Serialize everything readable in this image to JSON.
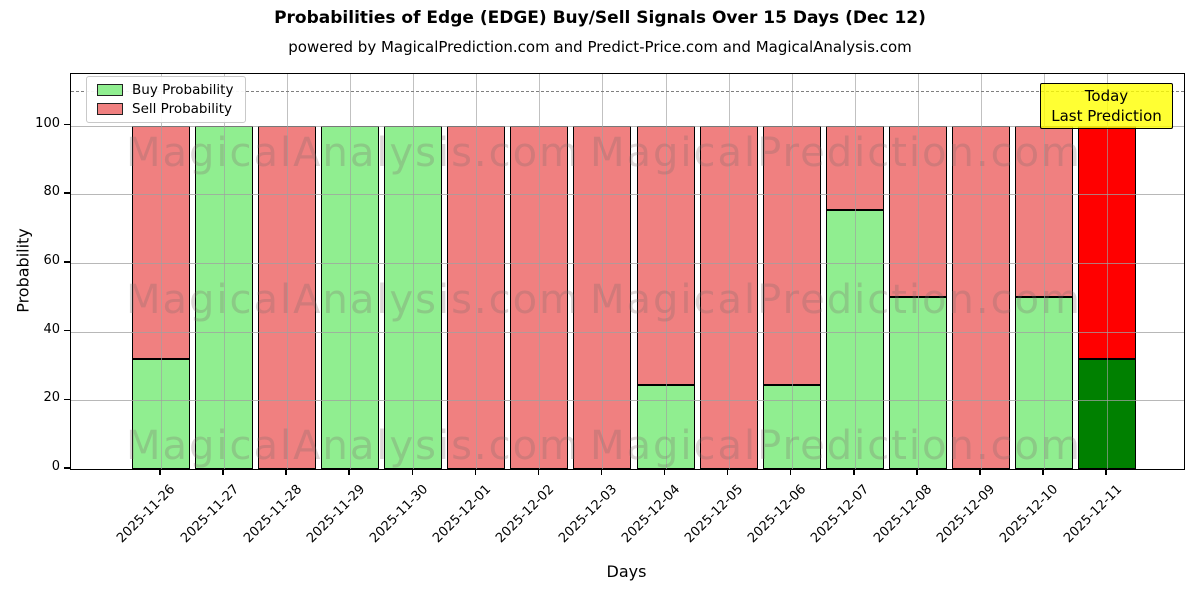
{
  "title": "Probabilities of Edge (EDGE) Buy/Sell Signals Over 15 Days (Dec 12)",
  "subtitle": "powered by MagicalPrediction.com and Predict-Price.com and MagicalAnalysis.com",
  "legend": [
    {
      "label": "Buy Probability",
      "color": "#90EE90"
    },
    {
      "label": "Sell Probability",
      "color": "#F08080"
    }
  ],
  "annotation": {
    "line1": "Today",
    "line2": "Last Prediction",
    "bg_color": "#FFFF00"
  },
  "watermarks": {
    "left_text": "MagicalAnalysis.com",
    "right_text": "MagicalPrediction.com"
  },
  "axes": {
    "ylabel": "Probability",
    "xlabel": "Days",
    "yticks": [
      0,
      20,
      40,
      60,
      80,
      100
    ],
    "ylim": [
      0,
      115
    ],
    "dashed_line_y": 110,
    "grid": true
  },
  "chart_data": {
    "type": "bar",
    "stacked": true,
    "categories": [
      "2025-11-26",
      "2025-11-27",
      "2025-11-28",
      "2025-11-29",
      "2025-11-30",
      "2025-12-01",
      "2025-12-02",
      "2025-12-03",
      "2025-12-04",
      "2025-12-05",
      "2025-12-06",
      "2025-12-07",
      "2025-12-08",
      "2025-12-09",
      "2025-12-10",
      "2025-12-11"
    ],
    "series": [
      {
        "name": "Buy Probability",
        "color": "#90EE90",
        "today_color": "#008000",
        "values": [
          32,
          100,
          0,
          100,
          100,
          0,
          0,
          0,
          24.5,
          0,
          24.5,
          75.5,
          50,
          0,
          50,
          32
        ]
      },
      {
        "name": "Sell Probability",
        "color": "#F08080",
        "today_color": "#FF0000",
        "values": [
          68,
          0,
          100,
          0,
          0,
          100,
          100,
          100,
          75.5,
          100,
          75.5,
          24.5,
          50,
          100,
          50,
          68
        ]
      }
    ],
    "today_index": 15
  }
}
